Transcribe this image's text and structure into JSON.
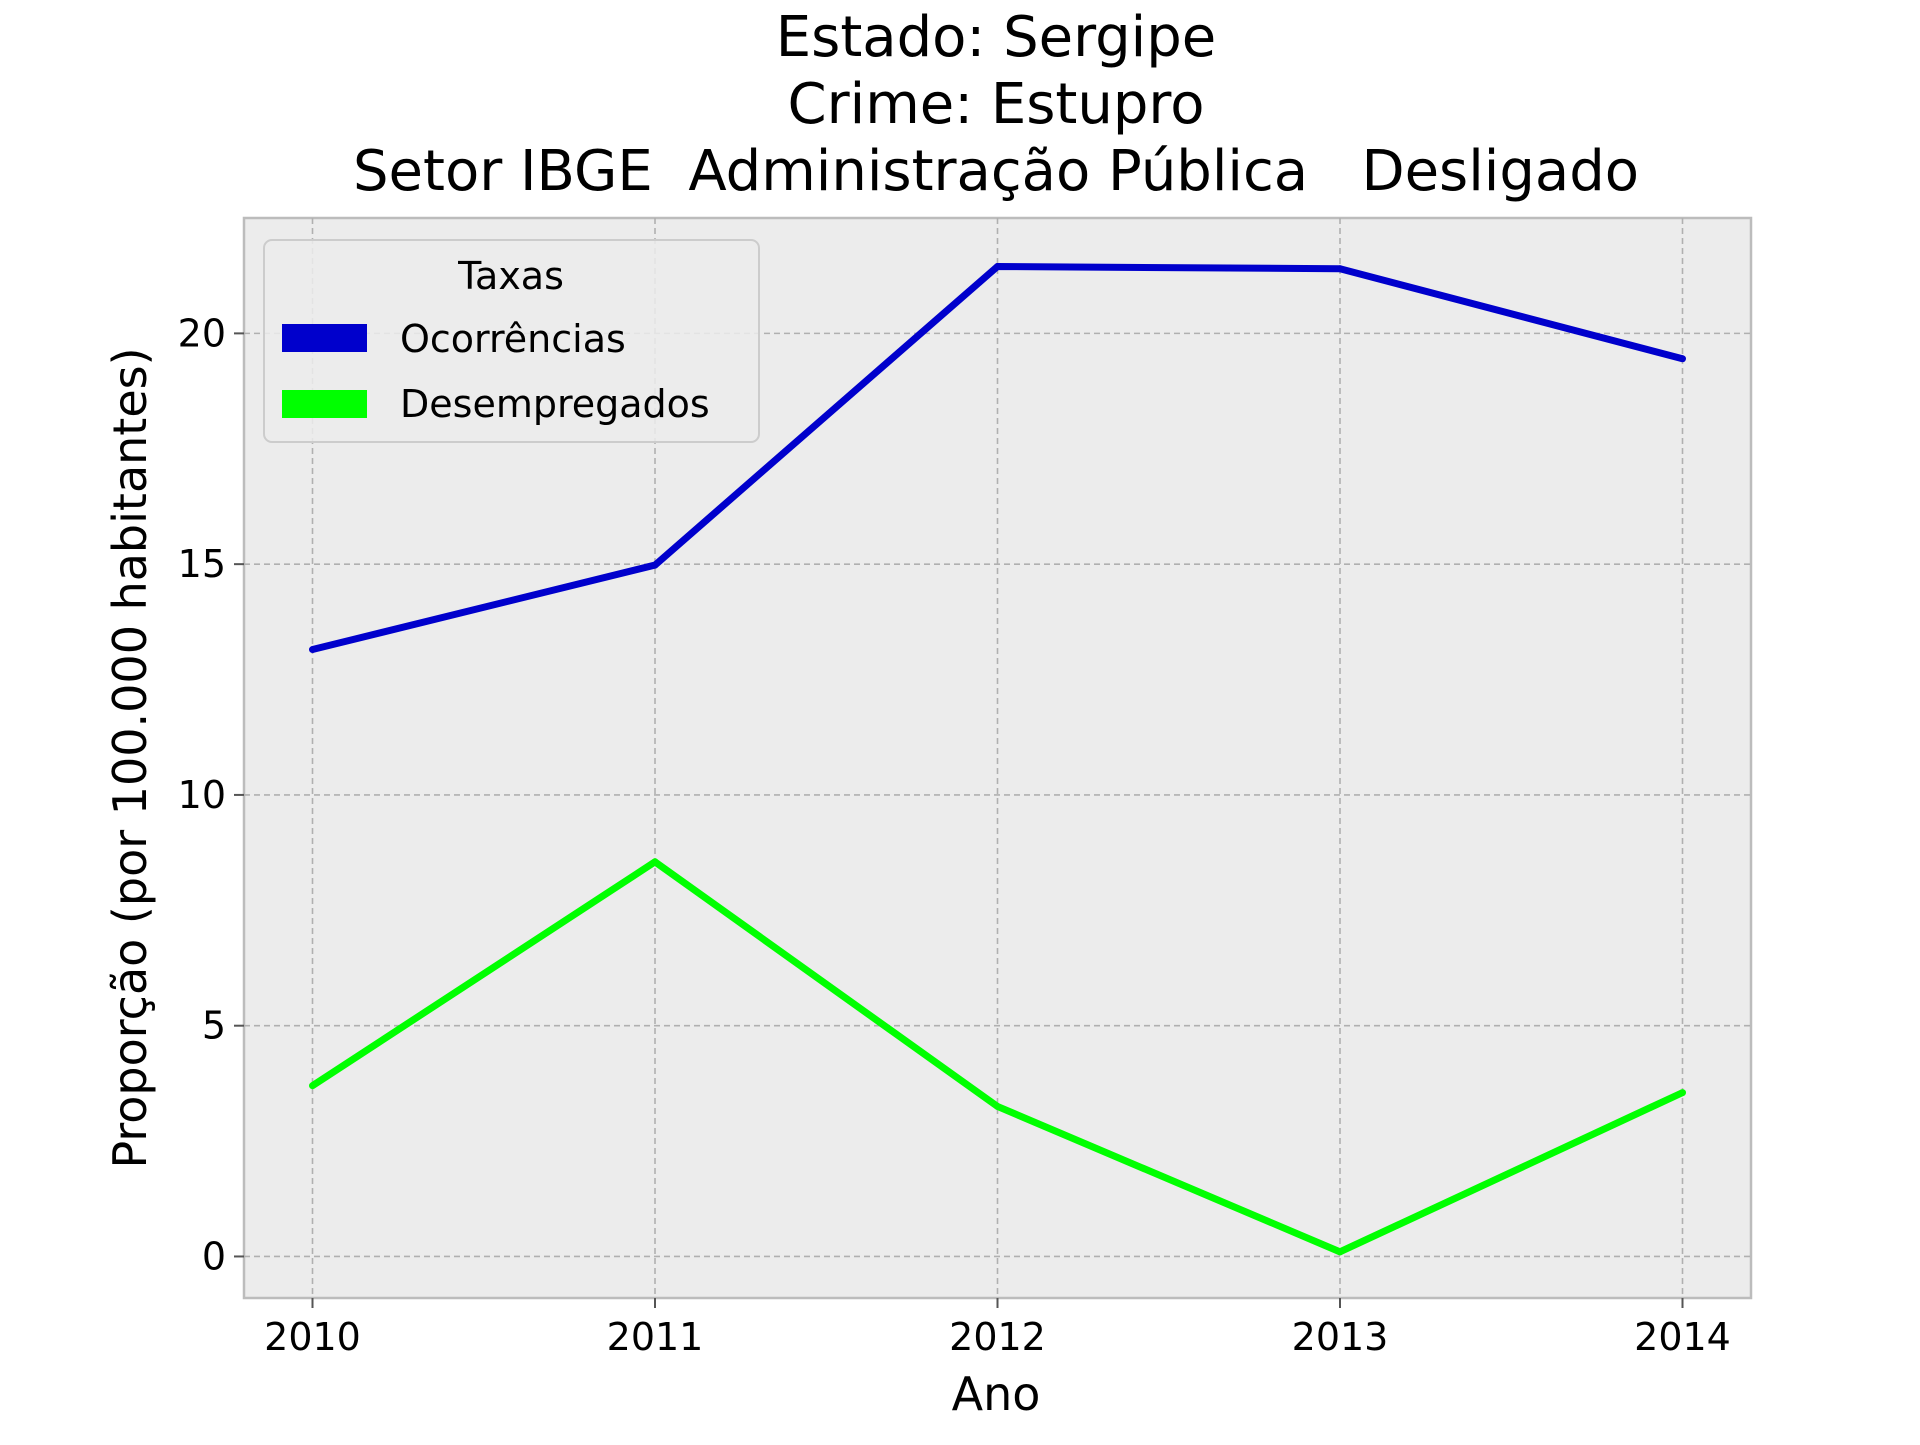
{
  "chart_data": {
    "type": "line",
    "title_lines": [
      "Estado: Sergipe",
      "Crime: Estupro",
      "Setor IBGE  Administração Pública   Desligado"
    ],
    "xlabel": "Ano",
    "ylabel": "Proporção (por 100.000 habitantes)",
    "categories": [
      "2010",
      "2011",
      "2012",
      "2013",
      "2014"
    ],
    "x": [
      2010,
      2011,
      2012,
      2013,
      2014
    ],
    "xlim": [
      2009.8,
      2014.2
    ],
    "ylim": [
      -0.9,
      22.5
    ],
    "yticks": [
      0,
      5,
      10,
      15,
      20
    ],
    "grid": true,
    "legend": {
      "title": "Taxas",
      "placement": "top-left"
    },
    "series": [
      {
        "name": "Ocorrências",
        "color": "#0000cc",
        "values": [
          13.15,
          14.98,
          21.45,
          21.4,
          19.45
        ]
      },
      {
        "name": "Desempregados",
        "color": "#00ff00",
        "values": [
          3.7,
          8.55,
          3.25,
          0.1,
          3.55
        ]
      }
    ]
  }
}
